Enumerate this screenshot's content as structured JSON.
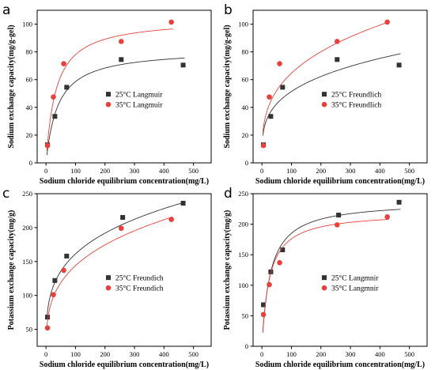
{
  "chart_data": [
    {
      "panel": "a",
      "type": "scatter",
      "xlabel": "Sodium chloride equilibrium concentration(mg/L)",
      "ylabel": "Sodium exchange capacity(mg/g-gel)",
      "xlim": [
        -30,
        560
      ],
      "ylim": [
        0,
        110
      ],
      "xticks": [
        0,
        100,
        200,
        300,
        400,
        500
      ],
      "yticks": [
        0,
        20,
        40,
        60,
        80,
        100
      ],
      "legend_position": "center-right",
      "model": "langmuir",
      "series": [
        {
          "name": "25°C Langmuir",
          "color": "#333333",
          "marker": "square",
          "x": [
            5,
            30,
            70,
            255,
            465
          ],
          "y": [
            13,
            33.5,
            54.5,
            74.5,
            70.5
          ],
          "fit": {
            "qmax": 82,
            "k": 0.025
          }
        },
        {
          "name": "35°C Langmuir",
          "color": "#e8413c",
          "marker": "circle",
          "x": [
            5,
            25,
            60,
            255,
            425
          ],
          "y": [
            12.5,
            47.5,
            71.5,
            87.5,
            101.5
          ],
          "fit": {
            "qmax": 104,
            "k": 0.03
          }
        }
      ]
    },
    {
      "panel": "b",
      "type": "scatter",
      "xlabel": "Sodium chloride equilibrium concentration(mg/L)",
      "ylabel": "Sodium exchange capacity(mg/g-gel)",
      "xlim": [
        -30,
        560
      ],
      "ylim": [
        0,
        110
      ],
      "xticks": [
        0,
        100,
        200,
        300,
        400,
        500
      ],
      "yticks": [
        0,
        20,
        40,
        60,
        80,
        100
      ],
      "legend_position": "center-right",
      "model": "freundlich",
      "series": [
        {
          "name": "25°C Freundlich",
          "color": "#333333",
          "marker": "square",
          "x": [
            5,
            30,
            70,
            255,
            465
          ],
          "y": [
            13,
            33.5,
            54.5,
            74.5,
            70.5
          ],
          "fit": {
            "kf": 14.5,
            "n": 0.275
          }
        },
        {
          "name": "35°C Freundlich",
          "color": "#e8413c",
          "marker": "circle",
          "x": [
            5,
            25,
            60,
            255,
            425
          ],
          "y": [
            12.5,
            47.5,
            71.5,
            87.5,
            101.5
          ],
          "fit": {
            "kf": 15.5,
            "n": 0.31
          }
        }
      ]
    },
    {
      "panel": "c",
      "type": "scatter",
      "xlabel": "Sodium chloride equilibrium concentration(mg/L)",
      "ylabel": "Potassium exchange capacity(mg/g)",
      "xlim": [
        -30,
        560
      ],
      "ylim": [
        25,
        250
      ],
      "xticks": [
        0,
        100,
        200,
        300,
        400,
        500
      ],
      "yticks": [
        50,
        100,
        150,
        200,
        250
      ],
      "legend_position": "center-right",
      "model": "freundlich",
      "series": [
        {
          "name": "25°C Freundich",
          "color": "#333333",
          "marker": "square",
          "x": [
            5,
            30,
            70,
            260,
            465
          ],
          "y": [
            68,
            122,
            158,
            215,
            236
          ],
          "fit": {
            "kf": 51,
            "n": 0.25
          }
        },
        {
          "name": "35°C Freundich",
          "color": "#e8413c",
          "marker": "circle",
          "x": [
            5,
            25,
            60,
            255,
            425
          ],
          "y": [
            52,
            101,
            137,
            199,
            212
          ],
          "fit": {
            "kf": 40,
            "n": 0.278
          }
        }
      ]
    },
    {
      "panel": "d",
      "type": "scatter",
      "xlabel": "Sodium chloride equilibrium concentration(mg/L)",
      "ylabel": "Potassium exchange capacity(mg/g)",
      "xlim": [
        -30,
        560
      ],
      "ylim": [
        0,
        250
      ],
      "xticks": [
        0,
        100,
        200,
        300,
        400,
        500
      ],
      "yticks": [
        0,
        50,
        100,
        150,
        200,
        250
      ],
      "legend_position": "center-right",
      "model": "langmuir",
      "series": [
        {
          "name": "25°C Langmnir",
          "color": "#333333",
          "marker": "square",
          "x": [
            5,
            30,
            70,
            260,
            465
          ],
          "y": [
            68,
            122,
            158,
            215,
            236
          ],
          "fit": {
            "qmax": 238,
            "k": 0.035
          }
        },
        {
          "name": "35°C Langmnir",
          "color": "#e8413c",
          "marker": "circle",
          "x": [
            5,
            25,
            60,
            255,
            425
          ],
          "y": [
            52,
            101,
            137,
            199,
            212
          ],
          "fit": {
            "qmax": 220,
            "k": 0.04
          }
        }
      ]
    }
  ]
}
